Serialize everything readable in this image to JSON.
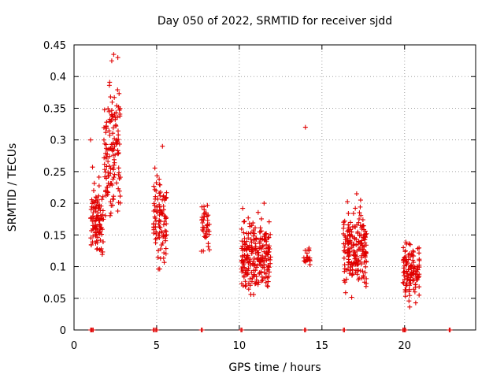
{
  "chart_data": {
    "type": "scatter",
    "title": "Day 050 of 2022, SRMTID for receiver sjdd",
    "xlabel": "GPS time / hours",
    "ylabel": "SRMTID / TECUs",
    "xlim": [
      0,
      24.3
    ],
    "ylim": [
      0,
      0.45
    ],
    "xticks": [
      0,
      5,
      10,
      15,
      20
    ],
    "yticks": [
      0,
      0.05,
      0.1,
      0.15,
      0.2,
      0.25,
      0.3,
      0.35,
      0.4,
      0.45
    ],
    "ytick_labels": [
      "0",
      "0.05",
      "0.1",
      "0.15",
      "0.2",
      "0.25",
      "0.3",
      "0.35",
      "0.4",
      "0.45"
    ],
    "grid": true,
    "marker": "+",
    "color": "#e00000",
    "clusters": [
      {
        "x_range": [
          1.0,
          1.8
        ],
        "y_range": [
          0.09,
          0.26
        ],
        "count": 110
      },
      {
        "x_range": [
          1.8,
          2.8
        ],
        "y_range": [
          0.14,
          0.43
        ],
        "count": 140
      },
      {
        "x_range": [
          4.8,
          5.6
        ],
        "y_range": [
          0.07,
          0.29
        ],
        "count": 100
      },
      {
        "x_range": [
          7.7,
          8.2
        ],
        "y_range": [
          0.11,
          0.22
        ],
        "count": 40
      },
      {
        "x_range": [
          10.1,
          11.9
        ],
        "y_range": [
          0.04,
          0.2
        ],
        "count": 230
      },
      {
        "x_range": [
          13.9,
          14.3
        ],
        "y_range": [
          0.09,
          0.14
        ],
        "count": 20
      },
      {
        "x_range": [
          16.3,
          17.7
        ],
        "y_range": [
          0.035,
          0.215
        ],
        "count": 200
      },
      {
        "x_range": [
          19.9,
          20.9
        ],
        "y_range": [
          0.03,
          0.15
        ],
        "count": 120
      }
    ],
    "outliers": [
      [
        14.0,
        0.32
      ],
      [
        1.0,
        0.3
      ],
      [
        2.4,
        0.435
      ],
      [
        2.65,
        0.43
      ],
      [
        5.35,
        0.29
      ],
      [
        11.5,
        0.2
      ],
      [
        17.1,
        0.215
      ]
    ],
    "zero_points_x": [
      1.0,
      1.1,
      4.8,
      4.95,
      7.7,
      10.1,
      13.95,
      16.3,
      19.9,
      20.0,
      22.7
    ]
  }
}
